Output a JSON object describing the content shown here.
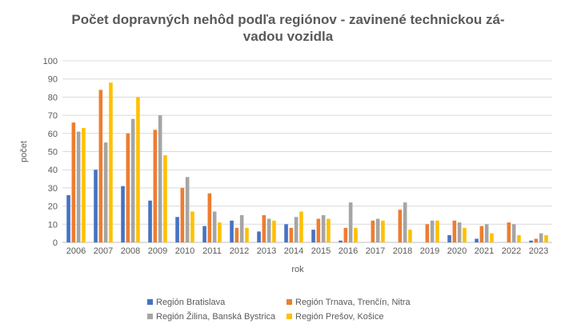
{
  "chart_data": {
    "type": "bar",
    "title": "Počet dopravných nehôd podľa regiónov - zavinené technickou závadou vozidla",
    "title_lines": [
      "Počet dopravných nehôd podľa regiónov - zavinené technickou zá-",
      "vadou vozidla"
    ],
    "xlabel": "rok",
    "ylabel": "počet",
    "ylim": [
      0,
      100
    ],
    "yticks": [
      0,
      10,
      20,
      30,
      40,
      50,
      60,
      70,
      80,
      90,
      100
    ],
    "grid": true,
    "legend_position": "bottom",
    "categories": [
      "2006",
      "2007",
      "2008",
      "2009",
      "2010",
      "2011",
      "2012",
      "2013",
      "2014",
      "2015",
      "2016",
      "2017",
      "2018",
      "2019",
      "2020",
      "2021",
      "2022",
      "2023"
    ],
    "series": [
      {
        "name": "Región Bratislava",
        "color": "#4472c4",
        "values": [
          26,
          40,
          31,
          23,
          14,
          9,
          12,
          6,
          10,
          7,
          1,
          0,
          0,
          0,
          4,
          2,
          0,
          1
        ]
      },
      {
        "name": "Región Trnava, Trenčín, Nitra",
        "color": "#ed7d31",
        "values": [
          66,
          84,
          60,
          62,
          30,
          27,
          8,
          15,
          8,
          13,
          8,
          12,
          18,
          10,
          12,
          9,
          11,
          2
        ]
      },
      {
        "name": "Región Žilina, Banská Bystrica",
        "color": "#a5a5a5",
        "values": [
          61,
          55,
          68,
          70,
          36,
          17,
          15,
          13,
          14,
          15,
          22,
          13,
          22,
          12,
          11,
          10,
          10,
          5
        ]
      },
      {
        "name": "Región Prešov, Košice",
        "color": "#ffc000",
        "values": [
          63,
          88,
          80,
          48,
          17,
          11,
          8,
          12,
          17,
          13,
          8,
          12,
          7,
          12,
          8,
          5,
          4,
          4
        ]
      }
    ]
  }
}
